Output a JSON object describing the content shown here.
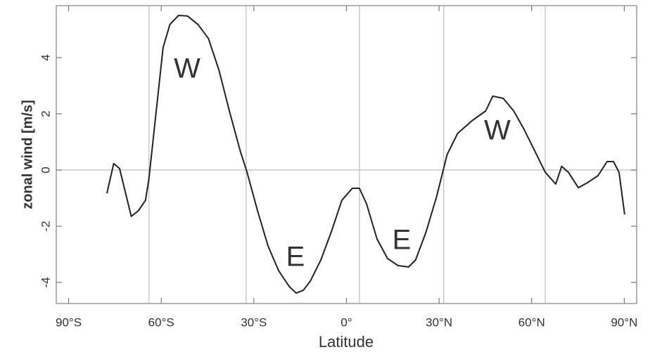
{
  "chart_data": {
    "type": "line",
    "x_label": "Latitude",
    "y_label": "zonal wind [m/s]",
    "xlim": [
      -94,
      94
    ],
    "ylim": [
      -4.75,
      5.85
    ],
    "xticks": [
      {
        "value": -90,
        "label": "90°S"
      },
      {
        "value": -60,
        "label": "60°S"
      },
      {
        "value": -30,
        "label": "30°S"
      },
      {
        "value": 0,
        "label": "0°"
      },
      {
        "value": 30,
        "label": "30°N"
      },
      {
        "value": 60,
        "label": "60°N"
      },
      {
        "value": 90,
        "label": "90°N"
      }
    ],
    "yticks": [
      -4,
      -2,
      0,
      2,
      4
    ],
    "x_gridlines": [
      -64,
      -32.5,
      4.2,
      31.5,
      64.4
    ],
    "y_gridlines": [
      0
    ],
    "annotations": [
      "W",
      "E",
      "E",
      "W"
    ],
    "series": [
      {
        "color": "#222222",
        "x": [
          -77.6,
          -75.4,
          -73.5,
          -69.7,
          -67.4,
          -65.1,
          -64,
          -59.4,
          -57.2,
          -54.4,
          -51.5,
          -48.1,
          -44.7,
          -41.3,
          -37.8,
          -34.4,
          -32.2,
          -28.8,
          -25.4,
          -22,
          -18.5,
          -16.3,
          -14,
          -11.7,
          -8.3,
          -4.9,
          -1.5,
          1.9,
          4.2,
          6.5,
          9.9,
          13.3,
          16.7,
          20.1,
          22.4,
          25.8,
          29.2,
          32.6,
          36,
          40.6,
          45.1,
          47.4,
          50.8,
          54.2,
          57.6,
          61,
          64.4,
          67.8,
          69.7,
          71.9,
          75.1,
          78.1,
          81.5,
          84.4,
          86.5,
          88.3,
          90.1
        ],
        "values": [
          -0.83,
          0.23,
          0.05,
          -1.65,
          -1.45,
          -1.08,
          -0.33,
          4.35,
          5.18,
          5.5,
          5.48,
          5.18,
          4.68,
          3.55,
          2.05,
          0.68,
          -0.08,
          -1.45,
          -2.7,
          -3.58,
          -4.15,
          -4.38,
          -4.28,
          -3.95,
          -3.2,
          -2.2,
          -1.08,
          -0.65,
          -0.65,
          -1.2,
          -2.45,
          -3.15,
          -3.4,
          -3.45,
          -3.2,
          -2.2,
          -0.95,
          0.55,
          1.3,
          1.75,
          2.1,
          2.63,
          2.55,
          2.1,
          1.43,
          0.68,
          -0.08,
          -0.5,
          0.13,
          -0.08,
          -0.63,
          -0.45,
          -0.2,
          0.3,
          0.3,
          -0.08,
          -1.58
        ]
      }
    ]
  }
}
